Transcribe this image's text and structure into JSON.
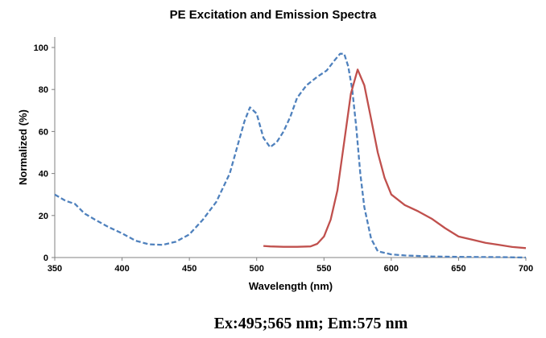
{
  "chart_data": {
    "type": "line",
    "title": "PE Excitation and Emission Spectra",
    "xlabel": "Wavelength (nm)",
    "ylabel": "Normalized (%)",
    "xlim": [
      350,
      700
    ],
    "ylim": [
      0,
      100
    ],
    "xticks": [
      350,
      400,
      450,
      500,
      550,
      600,
      650,
      700
    ],
    "yticks": [
      0,
      20,
      40,
      60,
      80,
      100
    ],
    "grid": false,
    "legend": "none",
    "series": [
      {
        "style": "dashed",
        "color": "#4f81bd",
        "points": [
          [
            350,
            30
          ],
          [
            358,
            27
          ],
          [
            365,
            25.5
          ],
          [
            372,
            21
          ],
          [
            380,
            18
          ],
          [
            390,
            14.5
          ],
          [
            400,
            11.5
          ],
          [
            410,
            8
          ],
          [
            420,
            6.3
          ],
          [
            430,
            6
          ],
          [
            440,
            7.5
          ],
          [
            450,
            11
          ],
          [
            460,
            18
          ],
          [
            470,
            26.5
          ],
          [
            480,
            40
          ],
          [
            487,
            56
          ],
          [
            491,
            65
          ],
          [
            495,
            71.5
          ],
          [
            500,
            68.5
          ],
          [
            505,
            57
          ],
          [
            510,
            52.5
          ],
          [
            515,
            55
          ],
          [
            520,
            60
          ],
          [
            525,
            67
          ],
          [
            530,
            76
          ],
          [
            537,
            82
          ],
          [
            545,
            86
          ],
          [
            552,
            89
          ],
          [
            558,
            94
          ],
          [
            562,
            97
          ],
          [
            565,
            97
          ],
          [
            568,
            91
          ],
          [
            571,
            80
          ],
          [
            574,
            62
          ],
          [
            577,
            40
          ],
          [
            580,
            24
          ],
          [
            585,
            9
          ],
          [
            590,
            3
          ],
          [
            600,
            1.5
          ],
          [
            610,
            1
          ],
          [
            630,
            0.5
          ],
          [
            650,
            0.3
          ],
          [
            680,
            0.2
          ],
          [
            700,
            0
          ]
        ]
      },
      {
        "style": "solid",
        "color": "#c0504d",
        "points": [
          [
            505,
            5.5
          ],
          [
            510,
            5.3
          ],
          [
            520,
            5.1
          ],
          [
            530,
            5.1
          ],
          [
            540,
            5.3
          ],
          [
            545,
            6.5
          ],
          [
            550,
            10
          ],
          [
            555,
            18
          ],
          [
            560,
            32
          ],
          [
            565,
            55
          ],
          [
            570,
            78
          ],
          [
            575,
            89.5
          ],
          [
            580,
            82
          ],
          [
            585,
            66
          ],
          [
            590,
            50
          ],
          [
            595,
            38
          ],
          [
            600,
            30
          ],
          [
            610,
            25
          ],
          [
            620,
            22
          ],
          [
            630,
            18.5
          ],
          [
            640,
            14
          ],
          [
            650,
            10
          ],
          [
            660,
            8.5
          ],
          [
            670,
            7
          ],
          [
            680,
            6
          ],
          [
            690,
            5
          ],
          [
            700,
            4.5
          ]
        ]
      }
    ]
  },
  "caption": "Ex:495;565 nm; Em:575 nm"
}
